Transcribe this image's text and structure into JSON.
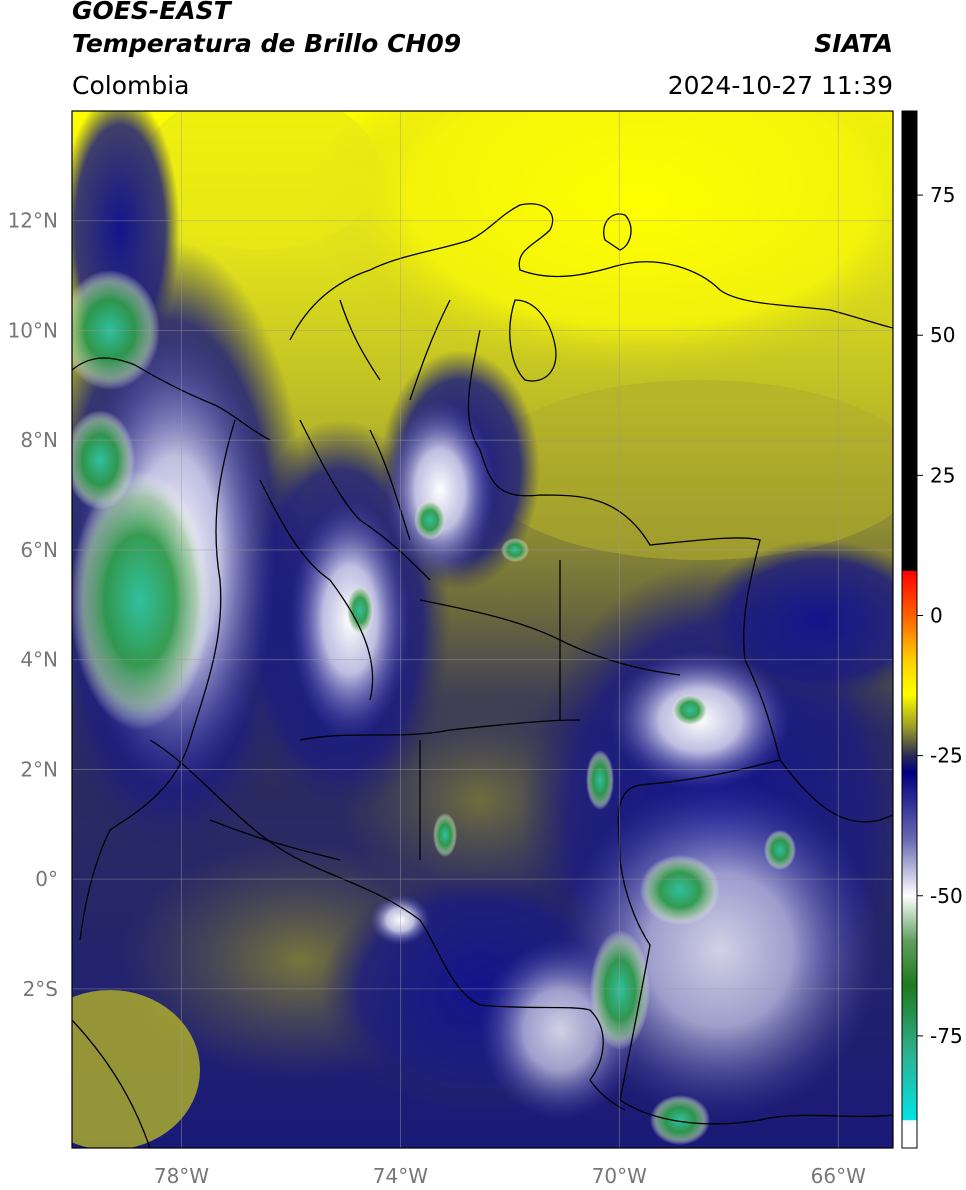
{
  "header": {
    "satellite": "GOES-EAST",
    "product": "Temperatura de Brillo CH09",
    "region": "Colombia",
    "source": "SIATA",
    "datetime": "2024-10-27 11:39"
  },
  "map": {
    "lon_range": [
      -80,
      -65
    ],
    "lat_range": [
      -4.9,
      14
    ],
    "lon_ticks": [
      {
        "value": -78,
        "label": "78°W"
      },
      {
        "value": -74,
        "label": "74°W"
      },
      {
        "value": -70,
        "label": "70°W"
      },
      {
        "value": -66,
        "label": "66°W"
      }
    ],
    "lat_ticks": [
      {
        "value": 12,
        "label": "12°N"
      },
      {
        "value": 10,
        "label": "10°N"
      },
      {
        "value": 8,
        "label": "8°N"
      },
      {
        "value": 6,
        "label": "6°N"
      },
      {
        "value": 4,
        "label": "4°N"
      },
      {
        "value": 2,
        "label": "2°N"
      },
      {
        "value": 0,
        "label": "0°"
      },
      {
        "value": -2,
        "label": "2°S"
      }
    ],
    "grid": true
  },
  "colorbar": {
    "range": [
      -95,
      90
    ],
    "ticks": [
      {
        "value": 75,
        "label": "75"
      },
      {
        "value": 50,
        "label": "50"
      },
      {
        "value": 25,
        "label": "25"
      },
      {
        "value": 0,
        "label": "0"
      },
      {
        "value": -25,
        "label": "-25"
      },
      {
        "value": -50,
        "label": "-50"
      },
      {
        "value": -75,
        "label": "-75"
      }
    ],
    "stops": [
      {
        "value": 90,
        "color": "#000000"
      },
      {
        "value": 8,
        "color": "#000000"
      },
      {
        "value": 7.9,
        "color": "#ff0000"
      },
      {
        "value": 0,
        "color": "#ff6000"
      },
      {
        "value": -8,
        "color": "#ffd000"
      },
      {
        "value": -14,
        "color": "#ffff00"
      },
      {
        "value": -20,
        "color": "#9a9a28"
      },
      {
        "value": -25,
        "color": "#2a2a55"
      },
      {
        "value": -28,
        "color": "#000080"
      },
      {
        "value": -40,
        "color": "#6a6ab4"
      },
      {
        "value": -50,
        "color": "#ffffff"
      },
      {
        "value": -58,
        "color": "#60a060"
      },
      {
        "value": -66,
        "color": "#1e7a1e"
      },
      {
        "value": -78,
        "color": "#30b090"
      },
      {
        "value": -90,
        "color": "#00e5e5"
      },
      {
        "value": -90.1,
        "color": "#ffffff"
      },
      {
        "value": -95,
        "color": "#ffffff"
      }
    ]
  }
}
